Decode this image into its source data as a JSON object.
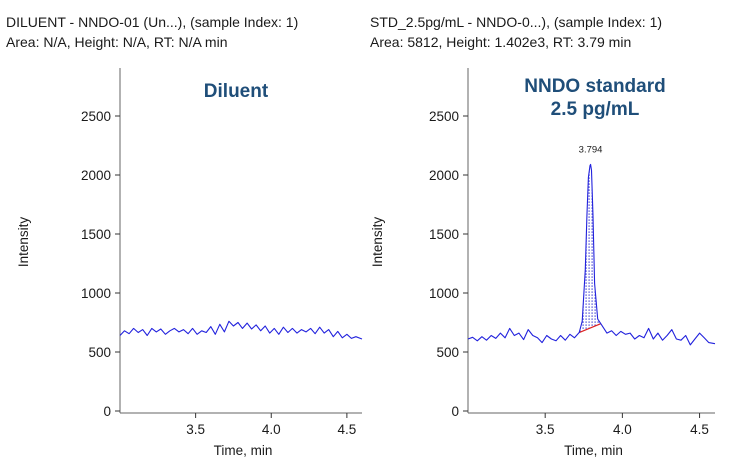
{
  "chart_data": [
    {
      "type": "line",
      "header": {
        "line1": "DILUENT - NNDO-01 (Un...), (sample Index: 1)",
        "line2": "Area: N/A, Height: N/A, RT: N/A min"
      },
      "title": "Diluent",
      "title_line2": "",
      "xlabel": "Time, min",
      "ylabel": "Intensity",
      "xlim": [
        3.0,
        4.6
      ],
      "ylim": [
        0,
        2800
      ],
      "xticks": [
        3.5,
        4.0,
        4.5
      ],
      "yticks": [
        0,
        500,
        1000,
        1500,
        2000,
        2500
      ],
      "line_color": "#2222dd",
      "grid": false,
      "series": [
        {
          "x": [
            3.0,
            3.03,
            3.06,
            3.09,
            3.12,
            3.15,
            3.18,
            3.21,
            3.24,
            3.27,
            3.3,
            3.33,
            3.36,
            3.39,
            3.42,
            3.45,
            3.48,
            3.51,
            3.54,
            3.57,
            3.6,
            3.63,
            3.66,
            3.69,
            3.72,
            3.75,
            3.78,
            3.81,
            3.84,
            3.87,
            3.9,
            3.93,
            3.96,
            3.99,
            4.02,
            4.05,
            4.08,
            4.11,
            4.14,
            4.17,
            4.2,
            4.23,
            4.26,
            4.29,
            4.32,
            4.35,
            4.38,
            4.41,
            4.44,
            4.47,
            4.5,
            4.53,
            4.56,
            4.6
          ],
          "y": [
            640,
            680,
            655,
            700,
            665,
            690,
            640,
            700,
            670,
            695,
            650,
            680,
            700,
            670,
            690,
            655,
            700,
            650,
            680,
            665,
            715,
            650,
            735,
            670,
            760,
            720,
            750,
            700,
            745,
            695,
            730,
            680,
            720,
            660,
            700,
            650,
            710,
            665,
            700,
            660,
            690,
            670,
            700,
            655,
            710,
            660,
            690,
            630,
            675,
            620,
            650,
            615,
            630,
            610
          ]
        }
      ]
    },
    {
      "type": "line",
      "header": {
        "line1": "STD_2.5pg/mL - NNDO-0...), (sample Index: 1)",
        "line2": "Area: 5812, Height: 1.402e3, RT: 3.79 min"
      },
      "title": "NNDO standard",
      "title_line2": "2.5 pg/mL",
      "xlabel": "Time, min",
      "ylabel": "Intensity",
      "xlim": [
        3.0,
        4.6
      ],
      "ylim": [
        0,
        2800
      ],
      "xticks": [
        3.5,
        4.0,
        4.5
      ],
      "yticks": [
        0,
        500,
        1000,
        1500,
        2000,
        2500
      ],
      "line_color": "#2222dd",
      "baseline_color": "#dd2222",
      "grid": false,
      "peak": {
        "label": "3.794",
        "rt": 3.794,
        "start": 3.72,
        "end": 3.86,
        "fill": "dotted"
      },
      "series": [
        {
          "x": [
            3.0,
            3.03,
            3.06,
            3.09,
            3.12,
            3.15,
            3.18,
            3.21,
            3.24,
            3.27,
            3.3,
            3.33,
            3.36,
            3.39,
            3.42,
            3.45,
            3.48,
            3.51,
            3.54,
            3.57,
            3.6,
            3.63,
            3.66,
            3.69,
            3.72,
            3.74,
            3.76,
            3.77,
            3.78,
            3.79,
            3.794,
            3.8,
            3.81,
            3.82,
            3.84,
            3.86,
            3.88,
            3.9,
            3.93,
            3.96,
            3.99,
            4.02,
            4.05,
            4.08,
            4.11,
            4.14,
            4.17,
            4.2,
            4.23,
            4.26,
            4.29,
            4.32,
            4.35,
            4.38,
            4.41,
            4.44,
            4.47,
            4.5,
            4.53,
            4.56,
            4.6
          ],
          "y": [
            610,
            625,
            595,
            630,
            600,
            640,
            615,
            660,
            620,
            700,
            640,
            660,
            605,
            690,
            640,
            620,
            580,
            640,
            610,
            595,
            640,
            600,
            650,
            620,
            665,
            760,
            1200,
            1650,
            1980,
            2080,
            2090,
            2040,
            1650,
            1080,
            780,
            740,
            700,
            660,
            680,
            640,
            675,
            650,
            660,
            610,
            640,
            620,
            700,
            610,
            660,
            600,
            640,
            690,
            610,
            600,
            640,
            560,
            610,
            660,
            620,
            580,
            570
          ]
        }
      ]
    }
  ]
}
